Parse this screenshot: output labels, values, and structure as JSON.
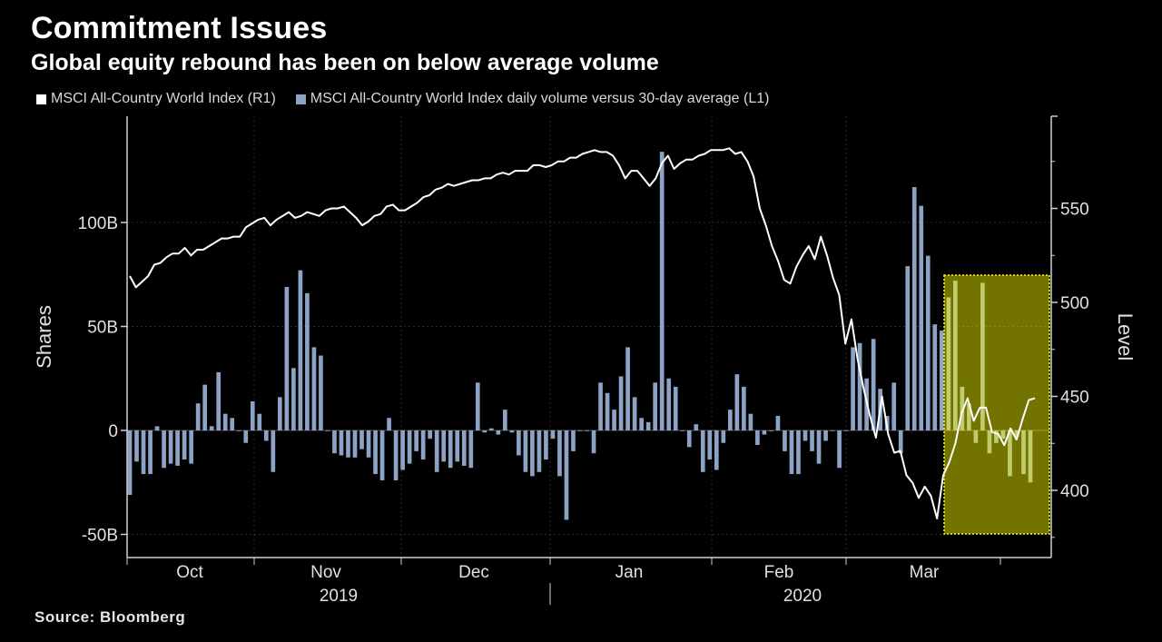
{
  "header": {
    "title": "Commitment Issues",
    "subtitle": "Global equity rebound has been on below average volume"
  },
  "legend": [
    {
      "label": "MSCI All-Country World Index (R1)",
      "color": "#ffffff"
    },
    {
      "label": "MSCI All-Country World Index daily volume versus 30-day average (L1)",
      "color": "#8ca3c6"
    }
  ],
  "source": "Source: Bloomberg",
  "chart_data": {
    "type": "bar+line",
    "left_axis": {
      "label": "Shares",
      "ticks": [
        "-50B",
        "0",
        "50B",
        "100B"
      ],
      "tick_values": [
        -50,
        0,
        50,
        100
      ],
      "range": [
        -55,
        145
      ]
    },
    "right_axis": {
      "label": "Level",
      "ticks": [
        "400",
        "450",
        "500",
        "550"
      ],
      "tick_values": [
        400,
        450,
        500,
        550
      ],
      "range": [
        365,
        595
      ]
    },
    "x_axis": {
      "months": [
        "Oct",
        "Nov",
        "Dec",
        "Jan",
        "Feb",
        "Mar"
      ],
      "years": [
        "2019",
        "2020"
      ]
    },
    "highlight_color": "#ffff00",
    "series": [
      {
        "name": "MSCI All-Country World Index daily volume versus 30-day average (L1)",
        "type": "bar",
        "axis": "left",
        "color": "#8ca3c6",
        "values": [
          -31,
          -15,
          -21,
          -21,
          2,
          -18,
          -16,
          -17,
          -14,
          -16,
          13,
          22,
          2,
          28,
          8,
          6,
          0,
          -6,
          14,
          8,
          -5,
          -20,
          16,
          69,
          30,
          77,
          66,
          40,
          36,
          0,
          -11,
          -12,
          -13,
          -13,
          -9,
          -13,
          -21,
          -24,
          6,
          -24,
          -19,
          -16,
          -10,
          -14,
          -4,
          -20,
          -15,
          -18,
          -15,
          -17,
          -18,
          23,
          -1,
          1,
          -2,
          10,
          -1,
          -12,
          -20,
          -22,
          -20,
          -14,
          -4,
          -22,
          -43,
          -10,
          0,
          0,
          -11,
          23,
          18,
          10,
          26,
          40,
          16,
          6,
          4,
          23,
          134,
          25,
          21,
          0,
          -8,
          3,
          -20,
          -14,
          -19,
          -6,
          10,
          27,
          21,
          8,
          -7,
          -2,
          0,
          7,
          -10,
          -21,
          -21,
          -5,
          -10,
          -16,
          -5,
          0,
          -18,
          0,
          40,
          42,
          25,
          44,
          20,
          7,
          23,
          -11,
          79,
          117,
          108,
          84,
          51,
          48,
          64,
          72,
          21,
          13,
          -6,
          71,
          -11,
          -6,
          -4,
          -22,
          -3,
          -21,
          -25
        ],
        "x_index_start": 0
      },
      {
        "name": "MSCI All-Country World Index (R1)",
        "type": "line",
        "axis": "right",
        "color": "#ffffff",
        "values": [
          514,
          508,
          511,
          514,
          520,
          521,
          524,
          526,
          526,
          529,
          525,
          528,
          528,
          530,
          532,
          534,
          534,
          535,
          535,
          540,
          542,
          544,
          545,
          541,
          544,
          546,
          548,
          545,
          546,
          548,
          547,
          546,
          549,
          550,
          550,
          551,
          548,
          545,
          541,
          543,
          546,
          547,
          551,
          552,
          549,
          549,
          551,
          553,
          556,
          557,
          560,
          561,
          563,
          562,
          563,
          564,
          565,
          565,
          566,
          566,
          568,
          569,
          568,
          570,
          570,
          570,
          573,
          573,
          572,
          573,
          575,
          575,
          577,
          577,
          579,
          580,
          581,
          580,
          580,
          578,
          573,
          566,
          570,
          570,
          566,
          562,
          566,
          574,
          578,
          571,
          574,
          576,
          576,
          578,
          579,
          581,
          581,
          581,
          582,
          579,
          580,
          575,
          567,
          550,
          541,
          530,
          522,
          512,
          510,
          519,
          525,
          530,
          523,
          535,
          525,
          513,
          504,
          478,
          491,
          470,
          454,
          440,
          428,
          450,
          430,
          420,
          421,
          408,
          404,
          396,
          402,
          397,
          385,
          408,
          415,
          425,
          441,
          449,
          437,
          444,
          444,
          431,
          430,
          424,
          433,
          427,
          438,
          448,
          449
        ],
        "x_index_start": 0
      }
    ]
  }
}
